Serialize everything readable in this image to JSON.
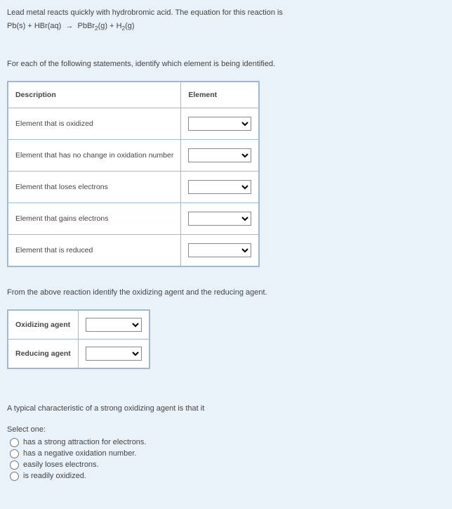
{
  "intro_text": "Lead metal reacts quickly with hydrobromic acid. The equation for this reaction is",
  "equation_html": "Pb(s) + HBr(aq) → PbBr<sub>2</sub>(g) + H<sub>2</sub>(g)",
  "table1": {
    "prompt": "For each of the following statements, identify which element is being identified.",
    "col1_header": "Description",
    "col2_header": "Element",
    "rows": [
      "Element that is oxidized",
      "Element that has no change in oxidation number",
      "Element that loses electrons",
      "Element that gains electrons",
      "Element that is reduced"
    ]
  },
  "table2": {
    "prompt": "From the above reaction identify the oxidizing agent and the reducing agent.",
    "rows": [
      "Oxidizing agent",
      "Reducing agent"
    ]
  },
  "q3": {
    "prompt": "A typical characteristic of a strong oxidizing agent is that it",
    "select_label": "Select one:",
    "options": [
      "has a strong attraction for electrons.",
      "has a negative oxidation number.",
      "easily loses electrons.",
      "is readily oxidized."
    ]
  },
  "colors": {
    "background": "#eaf2f9",
    "table_border": "#9fb9d1",
    "text": "#444"
  }
}
